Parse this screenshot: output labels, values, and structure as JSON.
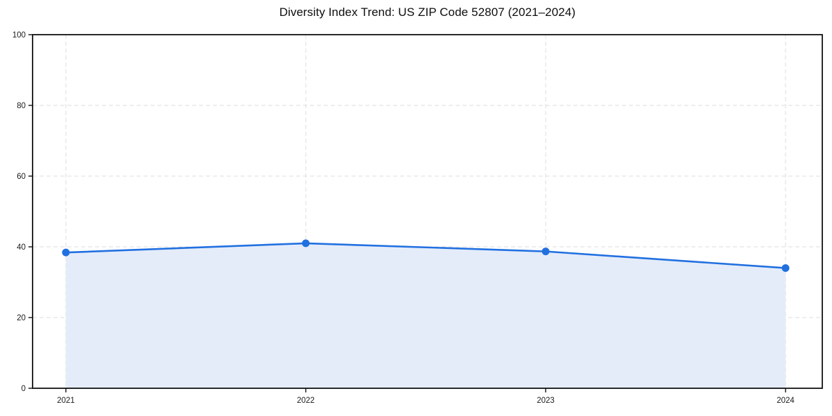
{
  "chart_data": {
    "type": "area",
    "title": "Diversity Index Trend: US ZIP Code 52807 (2021–2024)",
    "categories": [
      "2021",
      "2022",
      "2023",
      "2024"
    ],
    "series": [
      {
        "name": "Diversity Index",
        "values": [
          38.4,
          41.0,
          38.7,
          34.0
        ]
      }
    ],
    "xlabel": "",
    "ylabel": "",
    "ylim": [
      0,
      100
    ],
    "yticks": [
      0,
      20,
      40,
      60,
      80,
      100
    ],
    "grid": true,
    "grid_style": "dashed",
    "legend": "none",
    "marker": "circle",
    "colors": {
      "line": "#2170e0",
      "marker": "#2170e0",
      "fill": "#e4ecfa",
      "grid": "#dedede",
      "spine": "#111111",
      "tick_label": "#1a1a1a",
      "title": "#0d0d0d",
      "background": "#ffffff"
    }
  }
}
